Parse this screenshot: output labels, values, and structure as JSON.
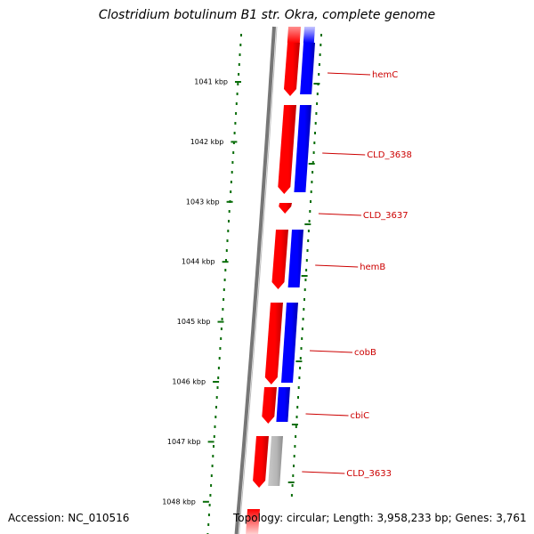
{
  "title": "Clostridium botulinum B1 str. Okra, complete genome",
  "footer": {
    "accession": "Accession: NC_010516",
    "info": "Topology: circular; Length: 3,958,233 bp; Genes: 3,761"
  },
  "colors": {
    "forward_gene": "#ff0000",
    "forward_cds": "#0000ff",
    "pseudo_cds": "#b4b4b4",
    "gene_label": "#cc0000",
    "tick": "#0a6e0a",
    "backbone": "#777777"
  },
  "ticks": [
    {
      "label": "1041 kbp",
      "kbp": 1041
    },
    {
      "label": "1042 kbp",
      "kbp": 1042
    },
    {
      "label": "1043 kbp",
      "kbp": 1043
    },
    {
      "label": "1044 kbp",
      "kbp": 1044
    },
    {
      "label": "1045 kbp",
      "kbp": 1045
    },
    {
      "label": "1046 kbp",
      "kbp": 1046
    },
    {
      "label": "1047 kbp",
      "kbp": 1047
    },
    {
      "label": "1048 kbp",
      "kbp": 1048
    }
  ],
  "genes": [
    {
      "name": "hemC",
      "kind": "protein"
    },
    {
      "name": "CLD_3638",
      "kind": "protein"
    },
    {
      "name": "CLD_3637",
      "kind": "protein"
    },
    {
      "name": "hemB",
      "kind": "protein"
    },
    {
      "name": "cobB",
      "kind": "protein"
    },
    {
      "name": "cbiC",
      "kind": "protein"
    },
    {
      "name": "CLD_3633",
      "kind": "pseudo"
    }
  ]
}
